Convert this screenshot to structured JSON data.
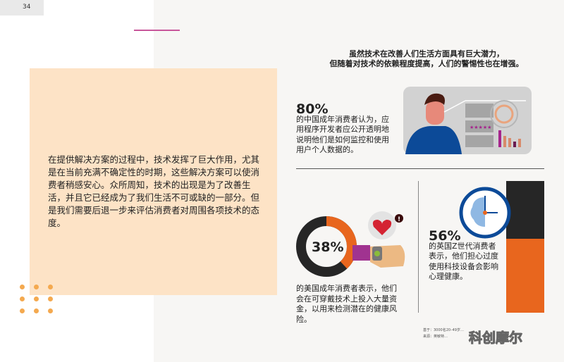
{
  "page_number": "34",
  "intro": "在提供解决方案的过程中，技术发挥了巨大作用，尤其是在当前充满不确定性的时期，这些解决方案可以使消费者稍感安心。众所周知，技术的出现是为了改善生活，并且它已经成为了我们生活不可或缺的一部分。但是我们需要后退一步来评估消费者对周围各项技术的态度。",
  "headline": {
    "line1": "虽然技术在改善人们生活方面具有巨大潜力，",
    "line2": "但随着对技术的依赖程度提高，人们的警惕性也在增强。"
  },
  "stats": [
    {
      "value": "80%",
      "text": "的中国成年消费者认为，应用程序开发者应公开透明地说明他们是如何监控和使用用户个人数据的。"
    },
    {
      "value": "38%",
      "text": "的美国成年消费者表示，他们会在可穿戴技术上投入大量资金，以用来检测潜在的健康风险。",
      "fraction": 0.38
    },
    {
      "value": "56%",
      "text": "的英国Z世代消费者表示，他们担心过度使用科技设备会影响心理健康。",
      "fraction": 0.56
    }
  ],
  "footer": {
    "base": "基于：3000名20–49岁…",
    "source": "来源：英敏特…"
  },
  "watermark": "科创摩尔",
  "colors": {
    "orange": "#e8661e",
    "peach": "#fde3c6",
    "pink": "#c8579b",
    "dark": "#262626",
    "blue": "#0c4a98"
  }
}
